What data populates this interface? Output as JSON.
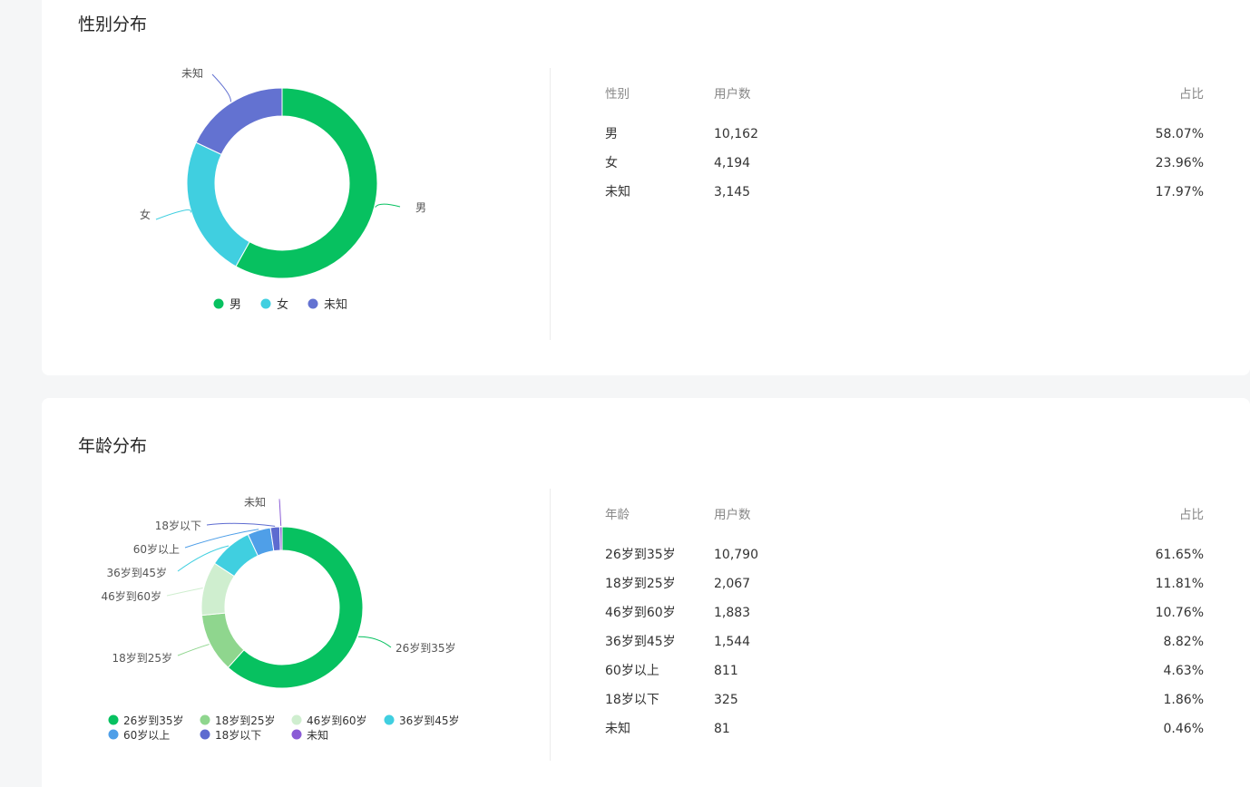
{
  "gender": {
    "title": "性别分布",
    "table": {
      "headers": [
        "性别",
        "用户数",
        "占比"
      ],
      "rows": [
        {
          "label": "男",
          "count": "10,162",
          "pct": "58.07%"
        },
        {
          "label": "女",
          "count": "4,194",
          "pct": "23.96%"
        },
        {
          "label": "未知",
          "count": "3,145",
          "pct": "17.97%"
        }
      ]
    },
    "chart_data": {
      "type": "pie",
      "categories": [
        "男",
        "女",
        "未知"
      ],
      "values": [
        10162,
        4194,
        3145
      ],
      "colors": [
        "#07c160",
        "#40cfe0",
        "#6372d1"
      ],
      "legend_position": "bottom"
    }
  },
  "age": {
    "title": "年龄分布",
    "table": {
      "headers": [
        "年龄",
        "用户数",
        "占比"
      ],
      "rows": [
        {
          "label": "26岁到35岁",
          "count": "10,790",
          "pct": "61.65%"
        },
        {
          "label": "18岁到25岁",
          "count": "2,067",
          "pct": "11.81%"
        },
        {
          "label": "46岁到60岁",
          "count": "1,883",
          "pct": "10.76%"
        },
        {
          "label": "36岁到45岁",
          "count": "1,544",
          "pct": "8.82%"
        },
        {
          "label": "60岁以上",
          "count": "811",
          "pct": "4.63%"
        },
        {
          "label": "18岁以下",
          "count": "325",
          "pct": "1.86%"
        },
        {
          "label": "未知",
          "count": "81",
          "pct": "0.46%"
        }
      ]
    },
    "chart_data": {
      "type": "pie",
      "categories": [
        "26岁到35岁",
        "18岁到25岁",
        "46岁到60岁",
        "36岁到45岁",
        "60岁以上",
        "18岁以下",
        "未知"
      ],
      "values": [
        10790,
        2067,
        1883,
        1544,
        811,
        325,
        81
      ],
      "colors": [
        "#07c160",
        "#8fd68e",
        "#cfeecf",
        "#40cfe0",
        "#4f9fe8",
        "#5d6bd0",
        "#8b5cd6"
      ],
      "legend_position": "bottom"
    }
  }
}
